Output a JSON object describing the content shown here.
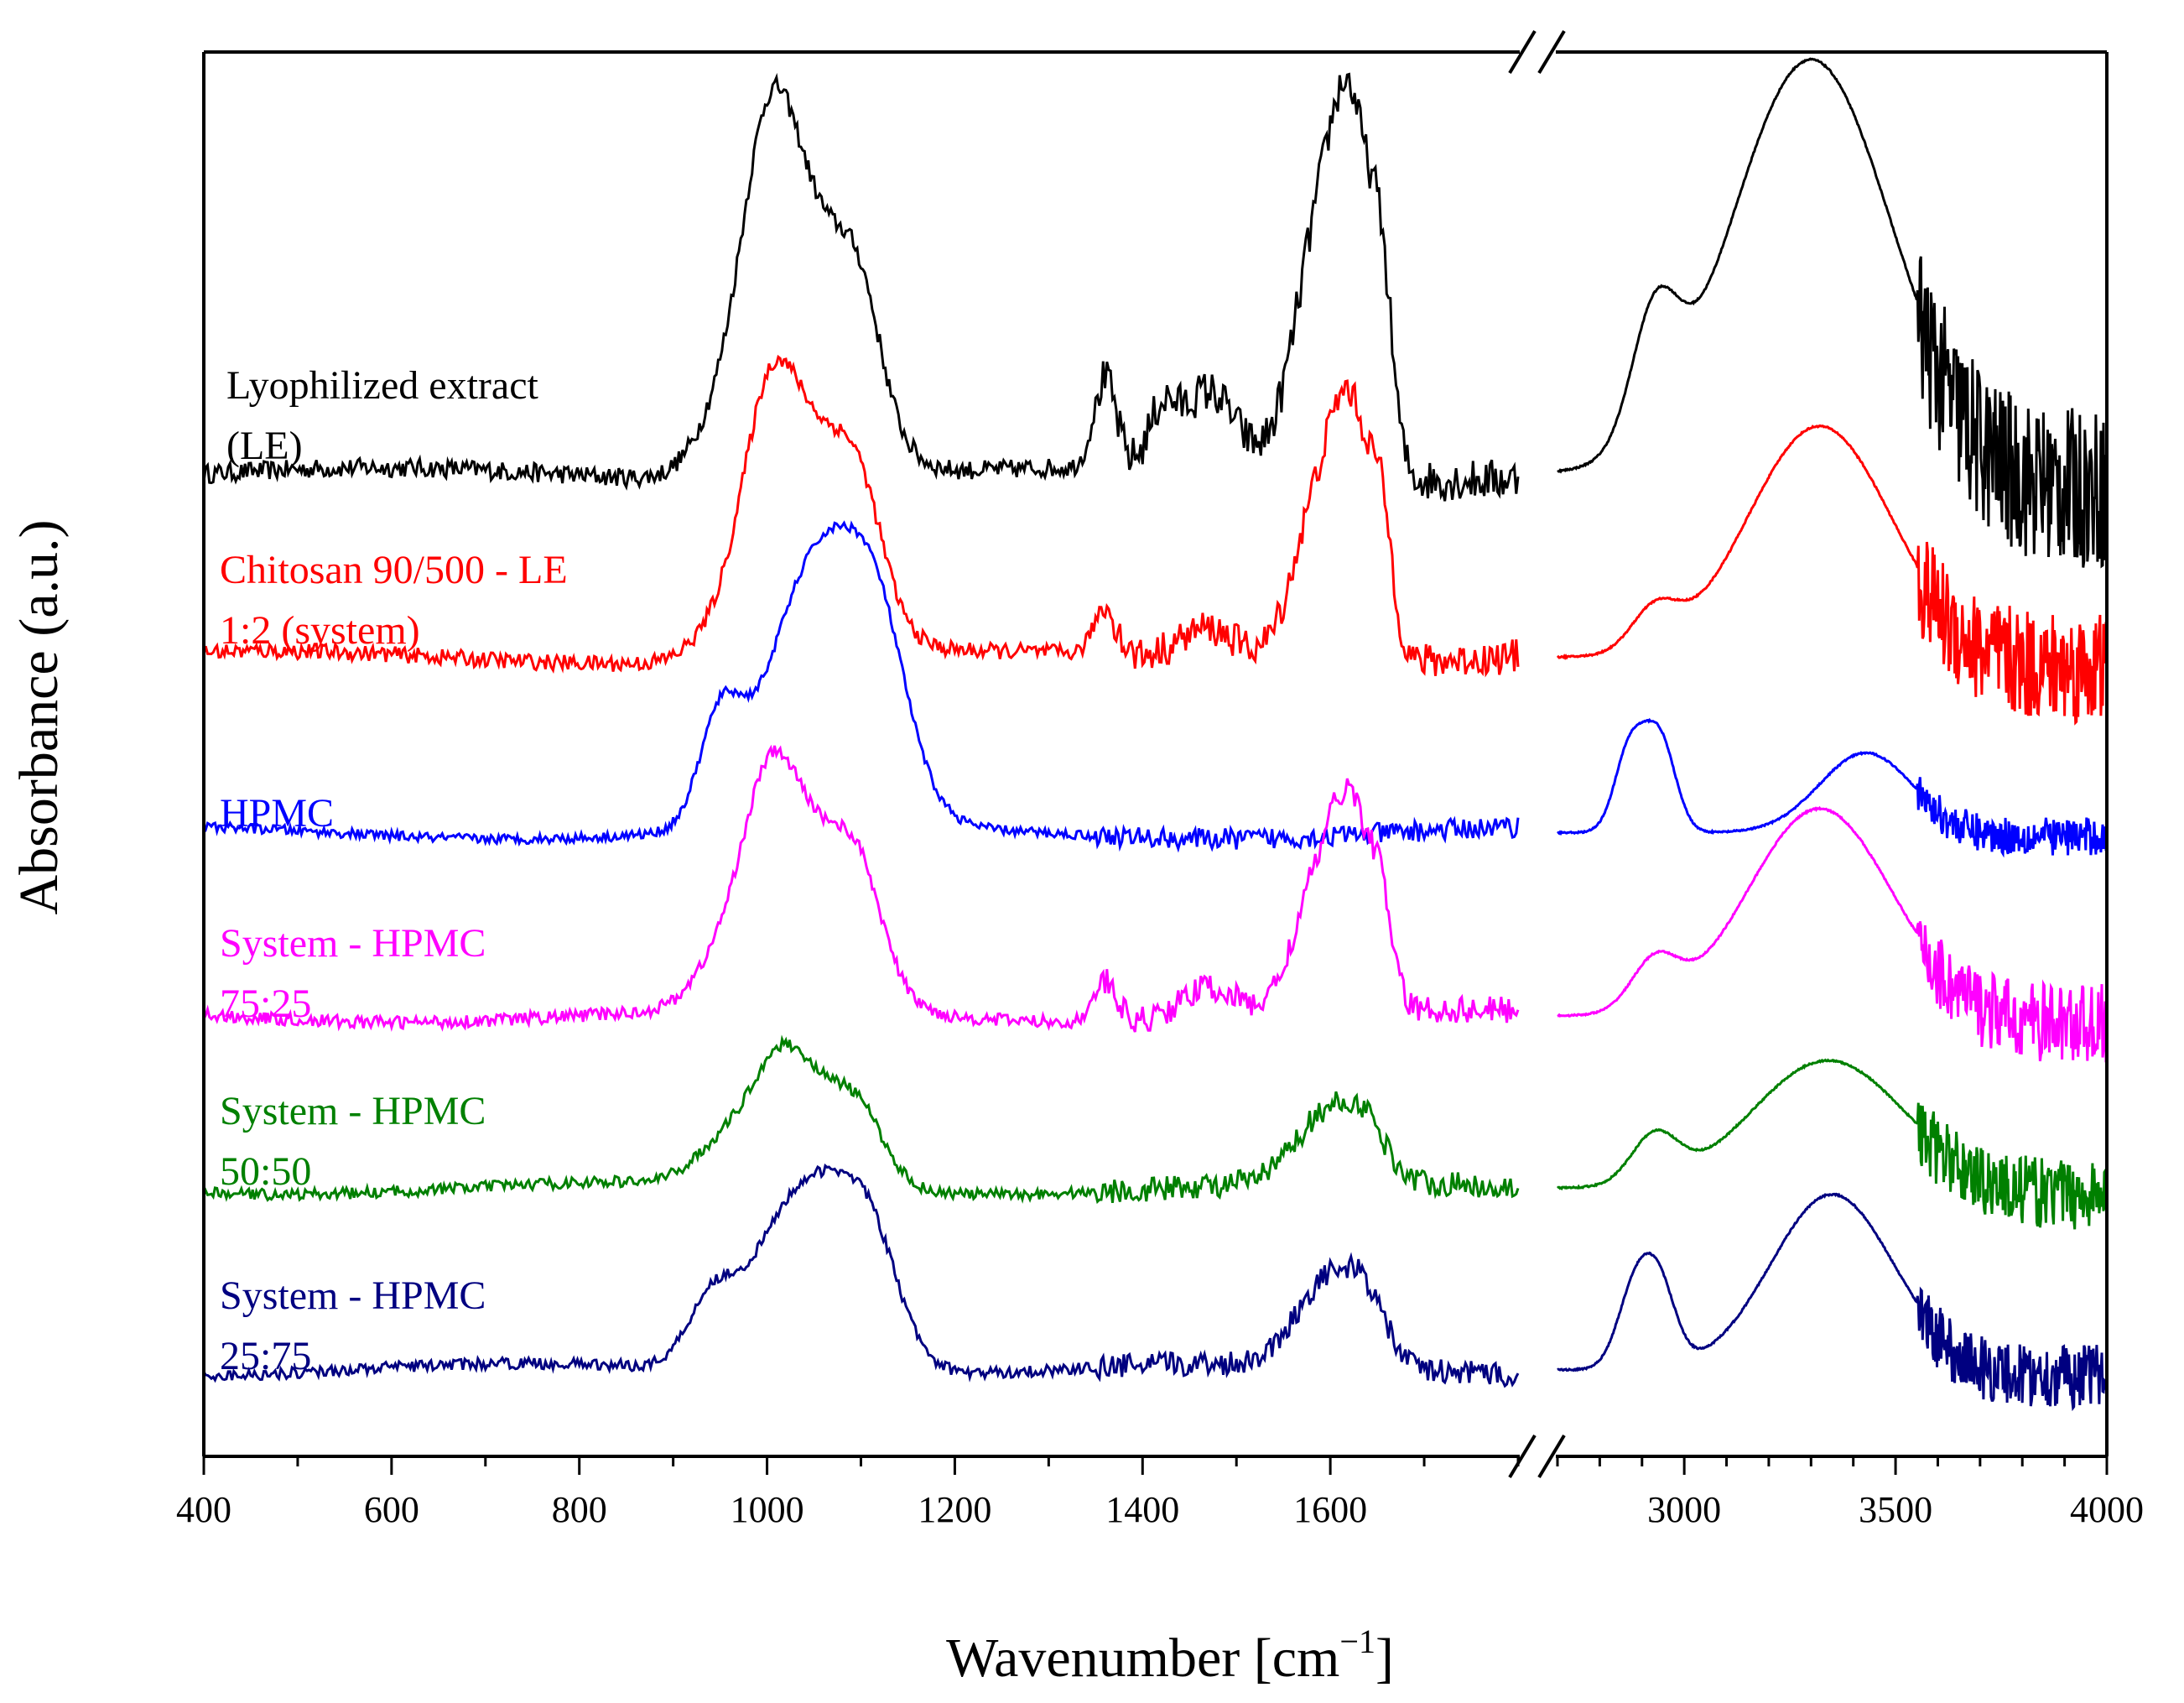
{
  "chart_data": {
    "type": "line",
    "title": "",
    "xlabel": "Wavenumber [cm",
    "xlabel_superscript": "−1",
    "xlabel_close": "]",
    "ylabel": "Absorbance (a.u.)",
    "axis_break": true,
    "x_segments": [
      {
        "range": [
          400,
          1800
        ],
        "ticks": [
          400,
          600,
          800,
          1000,
          1200,
          1400,
          1600
        ],
        "minor_step": 100
      },
      {
        "range": [
          2700,
          4000
        ],
        "ticks": [
          3000,
          3500,
          4000
        ],
        "minor_step": 100
      }
    ],
    "y_ticks_shown": false,
    "grid": false,
    "legend": "inline-left",
    "series": [
      {
        "name": "Lyophilized extract",
        "name_line2": "(LE)",
        "color": "#000000",
        "baseline": 6.0,
        "peaks1": [
          [
            950,
            0.25,
            30
          ],
          [
            1000,
            1.3,
            28
          ],
          [
            1045,
            1.55,
            50
          ],
          [
            1100,
            0.5,
            22
          ],
          [
            1360,
            0.55,
            12
          ],
          [
            1420,
            0.3,
            14
          ],
          [
            1470,
            0.5,
            30
          ],
          [
            1590,
            1.55,
            28
          ],
          [
            1625,
            1.65,
            20
          ],
          [
            1655,
            0.95,
            12
          ]
        ],
        "peaks2": [
          [
            2930,
            0.75,
            55
          ],
          [
            3300,
            2.6,
            190
          ]
        ],
        "noise1": 0.06,
        "noise2_hi": 0.5
      },
      {
        "name": "Chitosan 90/500 - LE",
        "name_line2": "1:2 (system)",
        "color": "#ff0000",
        "baseline": 4.85,
        "peaks1": [
          [
            950,
            0.15,
            30
          ],
          [
            1000,
            1.0,
            28
          ],
          [
            1050,
            1.3,
            48
          ],
          [
            1100,
            0.45,
            24
          ],
          [
            1360,
            0.3,
            12
          ],
          [
            1470,
            0.2,
            30
          ],
          [
            1590,
            1.05,
            28
          ],
          [
            1625,
            1.15,
            20
          ],
          [
            1655,
            0.7,
            12
          ]
        ],
        "peaks2": [
          [
            2930,
            0.25,
            55
          ],
          [
            3320,
            1.45,
            170
          ]
        ],
        "noise1": 0.05,
        "noise2_hi": 0.35
      },
      {
        "name": "HPMC",
        "name_line2": "",
        "color": "#0000ff",
        "baseline": 3.75,
        "peaks1": [
          [
            950,
            0.6,
            22
          ],
          [
            1060,
            1.75,
            55
          ],
          [
            1120,
            0.6,
            30
          ]
        ],
        "peaks2": [
          [
            2870,
            0.5,
            35
          ],
          [
            2940,
            0.6,
            38
          ],
          [
            3430,
            0.5,
            110
          ]
        ],
        "noise1": 0.03,
        "noise2_hi": 0.12
      },
      {
        "name": "System - HPMC",
        "name_line2": "75:25",
        "color": "#ff00ff",
        "baseline": 2.6,
        "peaks1": [
          [
            950,
            0.25,
            30
          ],
          [
            1000,
            0.9,
            28
          ],
          [
            1050,
            1.05,
            48
          ],
          [
            1100,
            0.4,
            24
          ],
          [
            1360,
            0.25,
            12
          ],
          [
            1470,
            0.2,
            30
          ],
          [
            1590,
            0.85,
            28
          ],
          [
            1625,
            0.95,
            20
          ],
          [
            1655,
            0.5,
            12
          ]
        ],
        "peaks2": [
          [
            2930,
            0.3,
            55
          ],
          [
            3320,
            1.3,
            170
          ]
        ],
        "noise1": 0.04,
        "noise2_hi": 0.25
      },
      {
        "name": "System - HPMC",
        "name_line2": "50:50",
        "color": "#008000",
        "baseline": 1.52,
        "peaks1": [
          [
            950,
            0.2,
            30
          ],
          [
            1010,
            0.45,
            30
          ],
          [
            1050,
            0.55,
            48
          ],
          [
            1100,
            0.25,
            25
          ],
          [
            1600,
            0.45,
            35
          ],
          [
            1640,
            0.2,
            20
          ]
        ],
        "peaks2": [
          [
            2930,
            0.3,
            55
          ],
          [
            3340,
            0.8,
            180
          ]
        ],
        "noise1": 0.035,
        "noise2_hi": 0.22
      },
      {
        "name": "System - HPMC",
        "name_line2": "25:75",
        "color": "#000080",
        "baseline": 0.38,
        "peaks1": [
          [
            940,
            0.35,
            25
          ],
          [
            1045,
            1.2,
            55
          ],
          [
            1110,
            0.5,
            30
          ],
          [
            1600,
            0.55,
            35
          ],
          [
            1640,
            0.25,
            20
          ]
        ],
        "peaks2": [
          [
            2880,
            0.45,
            40
          ],
          [
            2940,
            0.5,
            40
          ],
          [
            3350,
            1.1,
            145
          ]
        ],
        "noise1": 0.035,
        "noise2_hi": 0.2
      }
    ]
  }
}
